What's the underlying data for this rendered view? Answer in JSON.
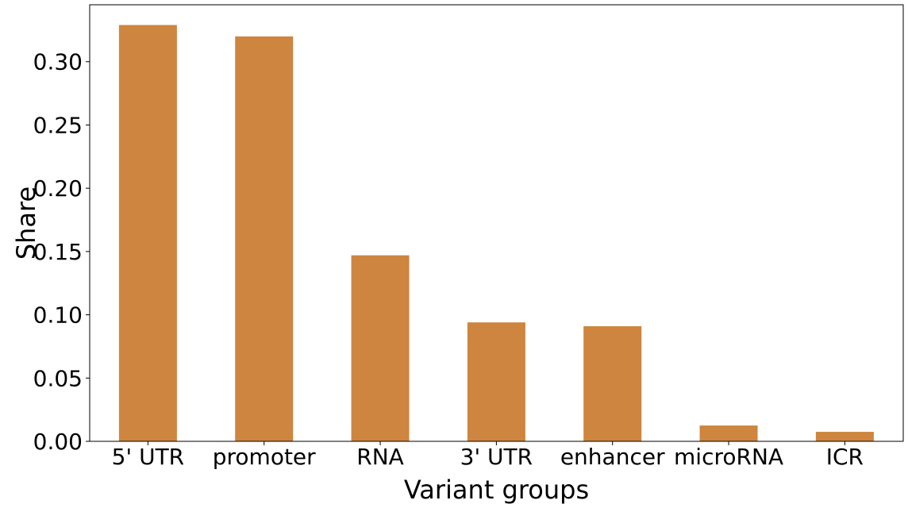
{
  "chart_data": {
    "type": "bar",
    "categories": [
      "5' UTR",
      "promoter",
      "RNA",
      "3' UTR",
      "enhancer",
      "microRNA",
      "ICR"
    ],
    "values": [
      0.329,
      0.32,
      0.147,
      0.094,
      0.091,
      0.0125,
      0.0075
    ],
    "title": "",
    "xlabel": "Variant groups",
    "ylabel": "Share",
    "ylim": [
      0,
      0.345
    ],
    "yticks": [
      0.0,
      0.05,
      0.1,
      0.15,
      0.2,
      0.25,
      0.3
    ],
    "ytick_labels": [
      "0.00",
      "0.05",
      "0.10",
      "0.15",
      "0.20",
      "0.25",
      "0.30"
    ],
    "bar_color": "#cd853f",
    "grid": false,
    "legend": "none"
  }
}
